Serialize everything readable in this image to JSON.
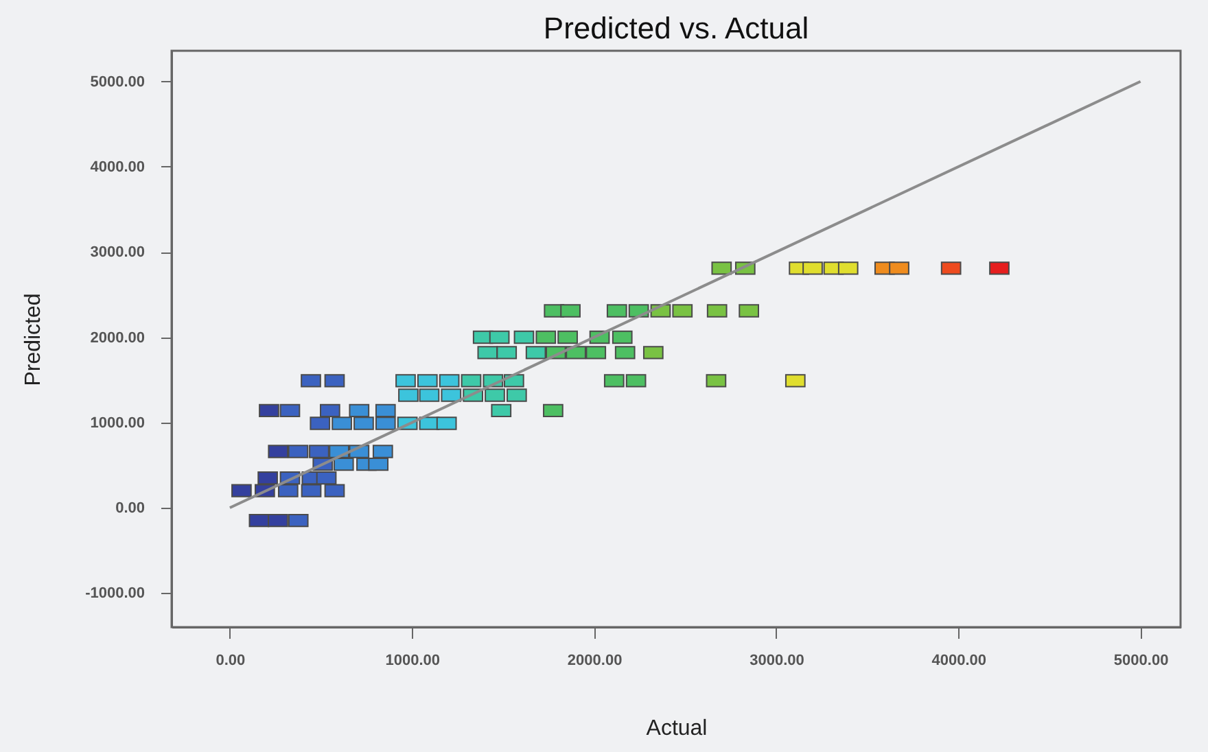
{
  "chart_data": {
    "type": "scatter",
    "title": "Predicted vs. Actual",
    "xlabel": "Actual",
    "ylabel": "Predicted",
    "xlim": [
      -320,
      5220
    ],
    "ylim": [
      -1400,
      5360
    ],
    "xticks": [
      {
        "value": 0,
        "label": "0.00"
      },
      {
        "value": 1000,
        "label": "1000.00"
      },
      {
        "value": 2000,
        "label": "2000.00"
      },
      {
        "value": 3000,
        "label": "3000.00"
      },
      {
        "value": 4000,
        "label": "4000.00"
      },
      {
        "value": 5000,
        "label": "5000.00"
      }
    ],
    "yticks": [
      {
        "value": -1000,
        "label": "-1000.00"
      },
      {
        "value": 0,
        "label": "0.00"
      },
      {
        "value": 1000,
        "label": "1000.00"
      },
      {
        "value": 2000,
        "label": "2000.00"
      },
      {
        "value": 3000,
        "label": "3000.00"
      },
      {
        "value": 4000,
        "label": "4000.00"
      },
      {
        "value": 5000,
        "label": "5000.00"
      }
    ],
    "grid": false,
    "marker": "square",
    "series": [
      {
        "color": "#34409e",
        "x": [
          160,
          264,
          64,
          192,
          208,
          265,
          215
        ],
        "values": [
          -150,
          -150,
          200,
          200,
          350,
          660,
          1140
        ]
      },
      {
        "color": "#3b62c0",
        "x": [
          376,
          320,
          447,
          575,
          330,
          450,
          530,
          510,
          375,
          490,
          495,
          330,
          550,
          445,
          575
        ],
        "values": [
          -150,
          200,
          200,
          200,
          350,
          350,
          350,
          510,
          660,
          660,
          990,
          1140,
          1140,
          1490,
          1490
        ]
      },
      {
        "color": "#3a8fd6",
        "x": [
          625,
          750,
          815,
          600,
          710,
          840,
          615,
          735,
          855,
          710,
          855
        ],
        "values": [
          510,
          510,
          510,
          660,
          660,
          660,
          990,
          990,
          990,
          1140,
          1140
        ]
      },
      {
        "color": "#3cc4dc",
        "x": [
          975,
          1095,
          1190,
          980,
          1095,
          1215,
          965,
          1085,
          1205
        ],
        "values": [
          990,
          990,
          990,
          1320,
          1320,
          1320,
          1490,
          1490,
          1490
        ]
      },
      {
        "color": "#3ec9a8",
        "x": [
          1490,
          1335,
          1455,
          1575,
          1325,
          1445,
          1560,
          1415,
          1520,
          1680,
          1390,
          1480,
          1615
        ],
        "values": [
          1140,
          1320,
          1320,
          1320,
          1490,
          1490,
          1490,
          1820,
          1820,
          1820,
          2000,
          2000,
          2000
        ]
      },
      {
        "color": "#4dbf62",
        "x": [
          1775,
          2110,
          2230,
          1790,
          1900,
          2010,
          2170,
          1735,
          1855,
          2030,
          2155,
          1780,
          1870,
          2125,
          2245
        ],
        "values": [
          1140,
          1490,
          1490,
          1820,
          1820,
          1820,
          1820,
          2000,
          2000,
          2000,
          2000,
          2310,
          2310,
          2310,
          2310
        ]
      },
      {
        "color": "#79c243",
        "x": [
          2670,
          2325,
          2365,
          2485,
          2675,
          2850,
          2700,
          2830
        ],
        "values": [
          1490,
          1820,
          2310,
          2310,
          2310,
          2310,
          2810,
          2810
        ]
      },
      {
        "color": "#e0de2e",
        "x": [
          3105,
          3125,
          3200,
          3315,
          3395
        ],
        "values": [
          1490,
          2810,
          2810,
          2810,
          2810
        ]
      },
      {
        "color": "#ef8c1e",
        "x": [
          3595,
          3675
        ],
        "values": [
          2810,
          2810
        ]
      },
      {
        "color": "#ee4b1f",
        "x": [
          3960
        ],
        "values": [
          2810
        ]
      },
      {
        "color": "#e61e1e",
        "x": [
          4225
        ],
        "values": [
          2810
        ]
      },
      {
        "type": "line",
        "marker": "none",
        "line_style": "solid",
        "color": "#8c8c8c",
        "x": [
          0,
          5000
        ],
        "values": [
          0,
          5000
        ]
      }
    ]
  }
}
